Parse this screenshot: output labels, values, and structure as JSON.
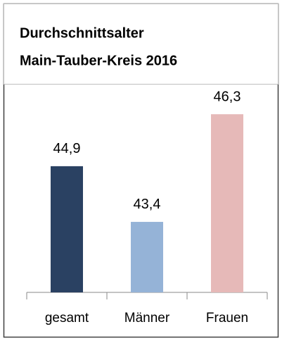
{
  "chart_data": {
    "type": "bar",
    "title": [
      "Durchschnittsalter",
      "Main-Tauber-Kreis 2016"
    ],
    "categories": [
      "gesamt",
      "Männer",
      "Frauen"
    ],
    "values": [
      44.9,
      43.4,
      46.3
    ],
    "value_labels": [
      "44,9",
      "43,4",
      "46,3"
    ],
    "colors": [
      "#2a4162",
      "#95b3d7",
      "#e6b9b8"
    ],
    "ylim": [
      41.5,
      47.1
    ]
  }
}
